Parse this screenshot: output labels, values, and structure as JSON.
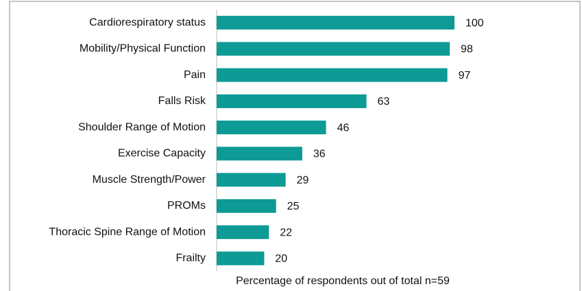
{
  "chart_data": {
    "type": "bar",
    "orientation": "horizontal",
    "x_label": "Percentage of respondents out of total n=59",
    "categories": [
      "Cardiorespiratory status",
      "Mobility/Physical Function",
      "Pain",
      "Falls Risk",
      "Shoulder Range of Motion",
      "Exercise Capacity",
      "Muscle Strength/Power",
      "PROMs",
      "Thoracic Spine Range of Motion",
      "Frailty"
    ],
    "values": [
      100,
      98,
      97,
      63,
      46,
      36,
      29,
      25,
      22,
      20
    ],
    "color": "#0e9a95",
    "xlim": [
      0,
      100
    ]
  }
}
